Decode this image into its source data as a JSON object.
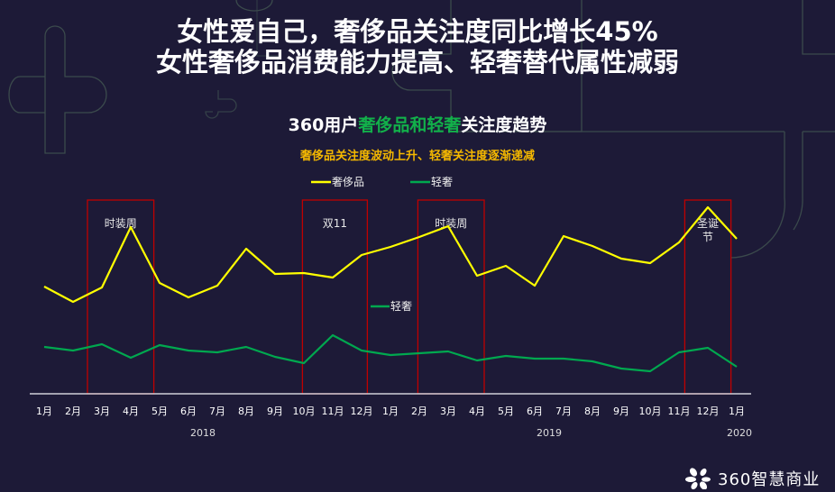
{
  "headline": {
    "line1": "女性爱自己，奢侈品关注度同比增长45%",
    "line2": "女性奢侈品消费能力提高、轻奢替代属性减弱"
  },
  "chart_title": {
    "prefix": "360用户",
    "highlight": "奢侈品和轻奢",
    "suffix": "关注度趋势"
  },
  "chart_subtitle": "奢侈品关注度波动上升、轻奢关注度逐渐递减",
  "colors": {
    "background": "#1d1a37",
    "luxury": "#ffff00",
    "light_luxury": "#00a84f",
    "highlight_box": "#c00000",
    "title_highlight": "#12b04a",
    "subtitle": "#f5b800"
  },
  "chart_data": {
    "type": "line",
    "categories": [
      "1月",
      "2月",
      "3月",
      "4月",
      "5月",
      "6月",
      "7月",
      "8月",
      "9月",
      "10月",
      "11月",
      "12月",
      "1月",
      "2月",
      "3月",
      "4月",
      "5月",
      "6月",
      "7月",
      "8月",
      "9月",
      "10月",
      "11月",
      "12月",
      "1月"
    ],
    "year_labels": [
      {
        "label": "2018",
        "from": 0,
        "to": 11
      },
      {
        "label": "2019",
        "from": 12,
        "to": 23
      },
      {
        "label": "2020",
        "from": 24,
        "to": 24
      }
    ],
    "series": [
      {
        "name": "奢侈品",
        "color": "#ffff00",
        "values": [
          119,
          102,
          118,
          185,
          123,
          107,
          120,
          161,
          133,
          134,
          129,
          154,
          163,
          174,
          186,
          131,
          142,
          120,
          175,
          164,
          150,
          145,
          168,
          207,
          172
        ]
      },
      {
        "name": "轻奢",
        "color": "#00a84f",
        "values": [
          52,
          48,
          55,
          40,
          54,
          48,
          46,
          52,
          41,
          34,
          65,
          48,
          43,
          45,
          47,
          37,
          42,
          39,
          39,
          36,
          28,
          25,
          46,
          51,
          30
        ]
      }
    ],
    "series_inline_label": "轻奢",
    "ylim": [
      0,
      237
    ],
    "y_axis_shown": false,
    "grid": false,
    "legend": "top-center",
    "annotations": [
      {
        "label": "时装周",
        "from": 1.5,
        "to": 3.8
      },
      {
        "label": "双11",
        "from": 8.95,
        "to": 11.2
      },
      {
        "label": "时装周",
        "from": 12.95,
        "to": 15.25
      },
      {
        "label": "圣诞\n节",
        "from": 22.2,
        "to": 23.8
      }
    ]
  },
  "logo": {
    "text": "360智慧商业"
  }
}
